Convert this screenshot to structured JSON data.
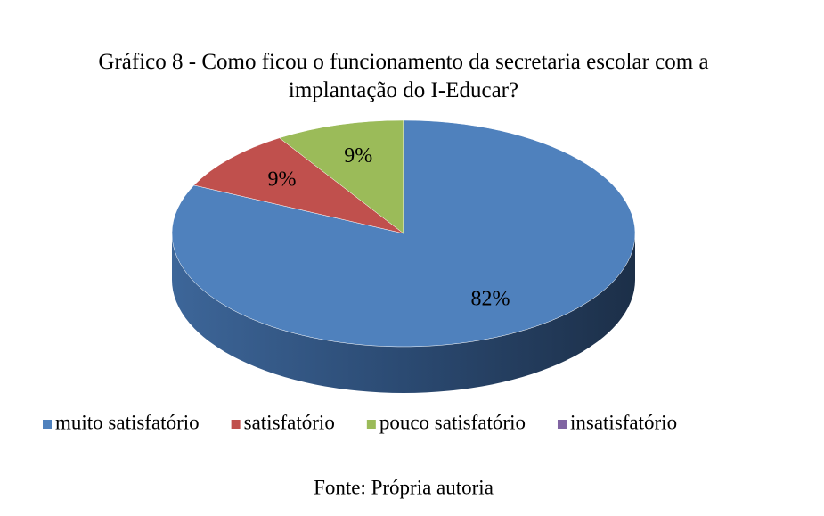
{
  "chart_data": {
    "type": "pie",
    "title": "Gráfico 8 - Como ficou o funcionamento da secretaria escolar com a implantação do I-Educar?",
    "categories": [
      "muito satisfatório",
      "satisfatório",
      "pouco satisfatório",
      "insatisfatório"
    ],
    "values": [
      82,
      9,
      9,
      0
    ],
    "value_labels": [
      "82%",
      "9%",
      "9%",
      null
    ],
    "colors": [
      "#4f81bd",
      "#c0504d",
      "#9bbb59",
      "#8064a2"
    ],
    "legend": "bottom",
    "source": "Fonte: Própria autoria"
  }
}
